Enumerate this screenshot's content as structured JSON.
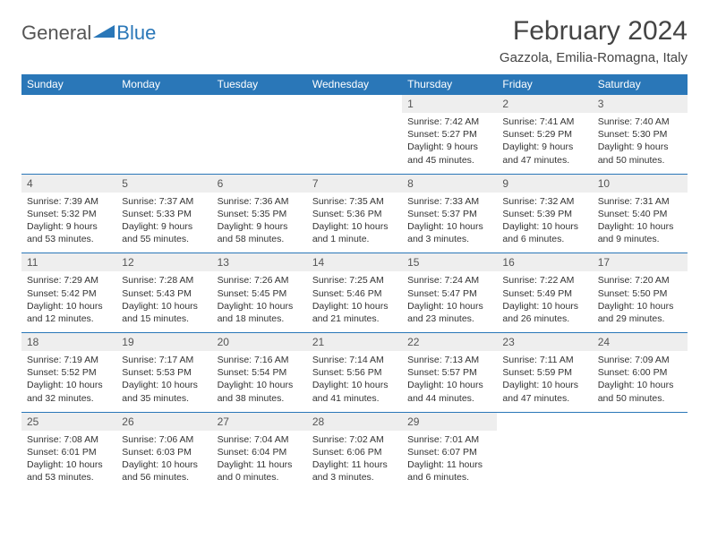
{
  "logo": {
    "general": "General",
    "blue": "Blue"
  },
  "title": "February 2024",
  "location": "Gazzola, Emilia-Romagna, Italy",
  "colors": {
    "accent": "#2a77b8",
    "header_bg": "#2a77b8",
    "daynum_bg": "#eeeeee",
    "text": "#333333"
  },
  "day_headers": [
    "Sunday",
    "Monday",
    "Tuesday",
    "Wednesday",
    "Thursday",
    "Friday",
    "Saturday"
  ],
  "weeks": [
    [
      null,
      null,
      null,
      null,
      {
        "n": "1",
        "sr": "Sunrise: 7:42 AM",
        "ss": "Sunset: 5:27 PM",
        "dl": "Daylight: 9 hours and 45 minutes."
      },
      {
        "n": "2",
        "sr": "Sunrise: 7:41 AM",
        "ss": "Sunset: 5:29 PM",
        "dl": "Daylight: 9 hours and 47 minutes."
      },
      {
        "n": "3",
        "sr": "Sunrise: 7:40 AM",
        "ss": "Sunset: 5:30 PM",
        "dl": "Daylight: 9 hours and 50 minutes."
      }
    ],
    [
      {
        "n": "4",
        "sr": "Sunrise: 7:39 AM",
        "ss": "Sunset: 5:32 PM",
        "dl": "Daylight: 9 hours and 53 minutes."
      },
      {
        "n": "5",
        "sr": "Sunrise: 7:37 AM",
        "ss": "Sunset: 5:33 PM",
        "dl": "Daylight: 9 hours and 55 minutes."
      },
      {
        "n": "6",
        "sr": "Sunrise: 7:36 AM",
        "ss": "Sunset: 5:35 PM",
        "dl": "Daylight: 9 hours and 58 minutes."
      },
      {
        "n": "7",
        "sr": "Sunrise: 7:35 AM",
        "ss": "Sunset: 5:36 PM",
        "dl": "Daylight: 10 hours and 1 minute."
      },
      {
        "n": "8",
        "sr": "Sunrise: 7:33 AM",
        "ss": "Sunset: 5:37 PM",
        "dl": "Daylight: 10 hours and 3 minutes."
      },
      {
        "n": "9",
        "sr": "Sunrise: 7:32 AM",
        "ss": "Sunset: 5:39 PM",
        "dl": "Daylight: 10 hours and 6 minutes."
      },
      {
        "n": "10",
        "sr": "Sunrise: 7:31 AM",
        "ss": "Sunset: 5:40 PM",
        "dl": "Daylight: 10 hours and 9 minutes."
      }
    ],
    [
      {
        "n": "11",
        "sr": "Sunrise: 7:29 AM",
        "ss": "Sunset: 5:42 PM",
        "dl": "Daylight: 10 hours and 12 minutes."
      },
      {
        "n": "12",
        "sr": "Sunrise: 7:28 AM",
        "ss": "Sunset: 5:43 PM",
        "dl": "Daylight: 10 hours and 15 minutes."
      },
      {
        "n": "13",
        "sr": "Sunrise: 7:26 AM",
        "ss": "Sunset: 5:45 PM",
        "dl": "Daylight: 10 hours and 18 minutes."
      },
      {
        "n": "14",
        "sr": "Sunrise: 7:25 AM",
        "ss": "Sunset: 5:46 PM",
        "dl": "Daylight: 10 hours and 21 minutes."
      },
      {
        "n": "15",
        "sr": "Sunrise: 7:24 AM",
        "ss": "Sunset: 5:47 PM",
        "dl": "Daylight: 10 hours and 23 minutes."
      },
      {
        "n": "16",
        "sr": "Sunrise: 7:22 AM",
        "ss": "Sunset: 5:49 PM",
        "dl": "Daylight: 10 hours and 26 minutes."
      },
      {
        "n": "17",
        "sr": "Sunrise: 7:20 AM",
        "ss": "Sunset: 5:50 PM",
        "dl": "Daylight: 10 hours and 29 minutes."
      }
    ],
    [
      {
        "n": "18",
        "sr": "Sunrise: 7:19 AM",
        "ss": "Sunset: 5:52 PM",
        "dl": "Daylight: 10 hours and 32 minutes."
      },
      {
        "n": "19",
        "sr": "Sunrise: 7:17 AM",
        "ss": "Sunset: 5:53 PM",
        "dl": "Daylight: 10 hours and 35 minutes."
      },
      {
        "n": "20",
        "sr": "Sunrise: 7:16 AM",
        "ss": "Sunset: 5:54 PM",
        "dl": "Daylight: 10 hours and 38 minutes."
      },
      {
        "n": "21",
        "sr": "Sunrise: 7:14 AM",
        "ss": "Sunset: 5:56 PM",
        "dl": "Daylight: 10 hours and 41 minutes."
      },
      {
        "n": "22",
        "sr": "Sunrise: 7:13 AM",
        "ss": "Sunset: 5:57 PM",
        "dl": "Daylight: 10 hours and 44 minutes."
      },
      {
        "n": "23",
        "sr": "Sunrise: 7:11 AM",
        "ss": "Sunset: 5:59 PM",
        "dl": "Daylight: 10 hours and 47 minutes."
      },
      {
        "n": "24",
        "sr": "Sunrise: 7:09 AM",
        "ss": "Sunset: 6:00 PM",
        "dl": "Daylight: 10 hours and 50 minutes."
      }
    ],
    [
      {
        "n": "25",
        "sr": "Sunrise: 7:08 AM",
        "ss": "Sunset: 6:01 PM",
        "dl": "Daylight: 10 hours and 53 minutes."
      },
      {
        "n": "26",
        "sr": "Sunrise: 7:06 AM",
        "ss": "Sunset: 6:03 PM",
        "dl": "Daylight: 10 hours and 56 minutes."
      },
      {
        "n": "27",
        "sr": "Sunrise: 7:04 AM",
        "ss": "Sunset: 6:04 PM",
        "dl": "Daylight: 11 hours and 0 minutes."
      },
      {
        "n": "28",
        "sr": "Sunrise: 7:02 AM",
        "ss": "Sunset: 6:06 PM",
        "dl": "Daylight: 11 hours and 3 minutes."
      },
      {
        "n": "29",
        "sr": "Sunrise: 7:01 AM",
        "ss": "Sunset: 6:07 PM",
        "dl": "Daylight: 11 hours and 6 minutes."
      },
      null,
      null
    ]
  ]
}
